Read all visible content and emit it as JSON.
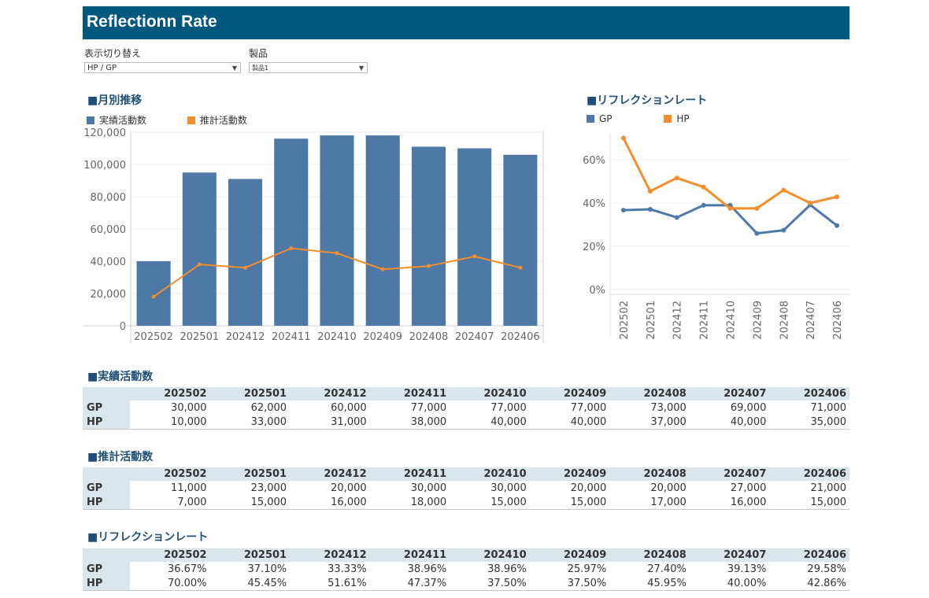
{
  "header": {
    "title": "Reflectionn Rate"
  },
  "filters": {
    "view": {
      "label": "表示切り替え",
      "value": "HP / GP"
    },
    "product": {
      "label": "製品",
      "value": "製品1"
    }
  },
  "monthly": {
    "title": "■月別推移",
    "legend": [
      {
        "label": "実績活動数",
        "color": "#4e79a7"
      },
      {
        "label": "推計活動数",
        "color": "#f28e2b"
      }
    ]
  },
  "reflection_chart": {
    "title": "■リフレクションレート",
    "legend": [
      {
        "label": "GP",
        "color": "#4e79a7"
      },
      {
        "label": "HP",
        "color": "#f28e2b"
      }
    ]
  },
  "chart_data": [
    {
      "type": "bar",
      "title": "月別推移",
      "categories": [
        "202502",
        "202501",
        "202412",
        "202411",
        "202410",
        "202409",
        "202408",
        "202407",
        "202406"
      ],
      "series": [
        {
          "name": "実績活動数",
          "type": "bar",
          "values": [
            40000,
            95000,
            91000,
            116000,
            118000,
            118000,
            111000,
            110000,
            106000
          ]
        },
        {
          "name": "推計活動数",
          "type": "line",
          "values": [
            18000,
            38000,
            36000,
            48000,
            45000,
            35000,
            37000,
            43000,
            36000
          ]
        }
      ],
      "ylim": [
        0,
        120000
      ],
      "yticks": [
        0,
        20000,
        40000,
        60000,
        80000,
        100000,
        120000
      ],
      "ytick_labels": [
        "0",
        "20,000",
        "40,000",
        "60,000",
        "80,000",
        "100,000",
        "120,000"
      ]
    },
    {
      "type": "line",
      "title": "リフレクションレート",
      "categories": [
        "202502",
        "202501",
        "202412",
        "202411",
        "202410",
        "202409",
        "202408",
        "202407",
        "202406"
      ],
      "series": [
        {
          "name": "GP",
          "values": [
            36.67,
            37.1,
            33.33,
            38.96,
            38.96,
            25.97,
            27.4,
            39.13,
            29.58
          ]
        },
        {
          "name": "HP",
          "values": [
            70.0,
            45.45,
            51.61,
            47.37,
            37.5,
            37.5,
            45.95,
            40.0,
            42.86
          ]
        }
      ],
      "ylim": [
        0,
        72
      ],
      "yticks": [
        0,
        20,
        40,
        60
      ],
      "ytick_labels": [
        "0%",
        "20%",
        "40%",
        "60%"
      ]
    }
  ],
  "tables": [
    {
      "title": "■実績活動数",
      "columns": [
        "202502",
        "202501",
        "202412",
        "202411",
        "202410",
        "202409",
        "202408",
        "202407",
        "202406"
      ],
      "rows": [
        {
          "label": "GP",
          "values": [
            "30,000",
            "62,000",
            "60,000",
            "77,000",
            "77,000",
            "77,000",
            "73,000",
            "69,000",
            "71,000"
          ]
        },
        {
          "label": "HP",
          "values": [
            "10,000",
            "33,000",
            "31,000",
            "38,000",
            "40,000",
            "40,000",
            "37,000",
            "40,000",
            "35,000"
          ]
        }
      ]
    },
    {
      "title": "■推計活動数",
      "columns": [
        "202502",
        "202501",
        "202412",
        "202411",
        "202410",
        "202409",
        "202408",
        "202407",
        "202406"
      ],
      "rows": [
        {
          "label": "GP",
          "values": [
            "11,000",
            "23,000",
            "20,000",
            "30,000",
            "30,000",
            "20,000",
            "20,000",
            "27,000",
            "21,000"
          ]
        },
        {
          "label": "HP",
          "values": [
            "7,000",
            "15,000",
            "16,000",
            "18,000",
            "15,000",
            "15,000",
            "17,000",
            "16,000",
            "15,000"
          ]
        }
      ]
    },
    {
      "title": "■リフレクションレート",
      "columns": [
        "202502",
        "202501",
        "202412",
        "202411",
        "202410",
        "202409",
        "202408",
        "202407",
        "202406"
      ],
      "rows": [
        {
          "label": "GP",
          "values": [
            "36.67%",
            "37.10%",
            "33.33%",
            "38.96%",
            "38.96%",
            "25.97%",
            "27.40%",
            "39.13%",
            "29.58%"
          ]
        },
        {
          "label": "HP",
          "values": [
            "70.00%",
            "45.45%",
            "51.61%",
            "47.37%",
            "37.50%",
            "37.50%",
            "45.95%",
            "40.00%",
            "42.86%"
          ]
        }
      ]
    }
  ]
}
